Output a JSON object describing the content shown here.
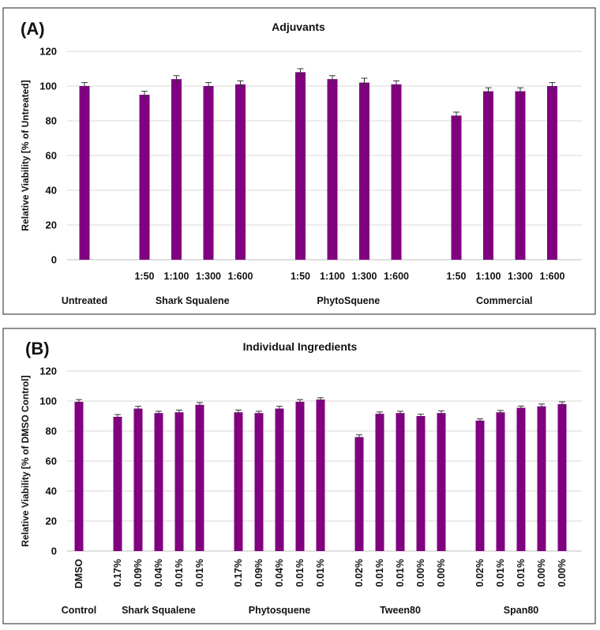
{
  "chart_data": [
    {
      "type": "bar",
      "panel_label": "(A)",
      "title": "Adjuvants",
      "ylabel": "Relative Viability [% of Untreated]",
      "ylim": [
        0,
        120
      ],
      "yticks": [
        0,
        20,
        40,
        60,
        80,
        100,
        120
      ],
      "grid": true,
      "bar_color": "#800080",
      "groups": [
        {
          "name": "Untreated",
          "bars": [
            {
              "label": "",
              "value": 100,
              "err": 2
            }
          ]
        },
        {
          "name": "Shark Squalene",
          "bars": [
            {
              "label": "1:50",
              "value": 95,
              "err": 2
            },
            {
              "label": "1:100",
              "value": 104,
              "err": 2
            },
            {
              "label": "1:300",
              "value": 100,
              "err": 2
            },
            {
              "label": "1:600",
              "value": 101,
              "err": 2
            }
          ]
        },
        {
          "name": "PhytoSquene",
          "bars": [
            {
              "label": "1:50",
              "value": 108,
              "err": 2
            },
            {
              "label": "1:100",
              "value": 104,
              "err": 2
            },
            {
              "label": "1:300",
              "value": 102,
              "err": 2.5
            },
            {
              "label": "1:600",
              "value": 101,
              "err": 2
            }
          ]
        },
        {
          "name": "Commercial",
          "bars": [
            {
              "label": "1:50",
              "value": 83,
              "err": 2
            },
            {
              "label": "1:100",
              "value": 97,
              "err": 2
            },
            {
              "label": "1:300",
              "value": 97,
              "err": 2
            },
            {
              "label": "1:600",
              "value": 100,
              "err": 2
            }
          ]
        }
      ]
    },
    {
      "type": "bar",
      "panel_label": "(B)",
      "title": "Individual Ingredients",
      "ylabel": "Relative Viability [% of DMSO Control]",
      "ylim": [
        0,
        120
      ],
      "yticks": [
        0,
        20,
        40,
        60,
        80,
        100,
        120
      ],
      "grid": true,
      "bar_color": "#800080",
      "groups": [
        {
          "name": "Control",
          "bars": [
            {
              "label": "DMSO",
              "value": 99.5,
              "err": 1.5
            }
          ]
        },
        {
          "name": "Shark Squalene",
          "bars": [
            {
              "label": "0.17%",
              "value": 89.5,
              "err": 1.5
            },
            {
              "label": "0.09%",
              "value": 95,
              "err": 1.5
            },
            {
              "label": "0.04%",
              "value": 92,
              "err": 1.2
            },
            {
              "label": "0.01%",
              "value": 92.5,
              "err": 1.5
            },
            {
              "label": "0.01%",
              "value": 97.5,
              "err": 1.5
            }
          ]
        },
        {
          "name": "Phytosquene",
          "bars": [
            {
              "label": "0.17%",
              "value": 92.5,
              "err": 1.5
            },
            {
              "label": "0.09%",
              "value": 92,
              "err": 1.2
            },
            {
              "label": "0.04%",
              "value": 95,
              "err": 1.5
            },
            {
              "label": "0.01%",
              "value": 99.5,
              "err": 1.5
            },
            {
              "label": "0.01%",
              "value": 101,
              "err": 1.2
            }
          ]
        },
        {
          "name": "Tween80",
          "bars": [
            {
              "label": "0.02%",
              "value": 76,
              "err": 1.5
            },
            {
              "label": "0.01%",
              "value": 91.5,
              "err": 1.2
            },
            {
              "label": "0.01%",
              "value": 92,
              "err": 1.2
            },
            {
              "label": "0.00%",
              "value": 90,
              "err": 1.2
            },
            {
              "label": "0.00%",
              "value": 92,
              "err": 1.5
            }
          ]
        },
        {
          "name": "Span80",
          "bars": [
            {
              "label": "0.02%",
              "value": 87,
              "err": 1.2
            },
            {
              "label": "0.01%",
              "value": 92.5,
              "err": 1.2
            },
            {
              "label": "0.01%",
              "value": 95.5,
              "err": 1.2
            },
            {
              "label": "0.00%",
              "value": 96.5,
              "err": 1.5
            },
            {
              "label": "0.00%",
              "value": 98,
              "err": 1.5
            }
          ]
        }
      ]
    }
  ]
}
